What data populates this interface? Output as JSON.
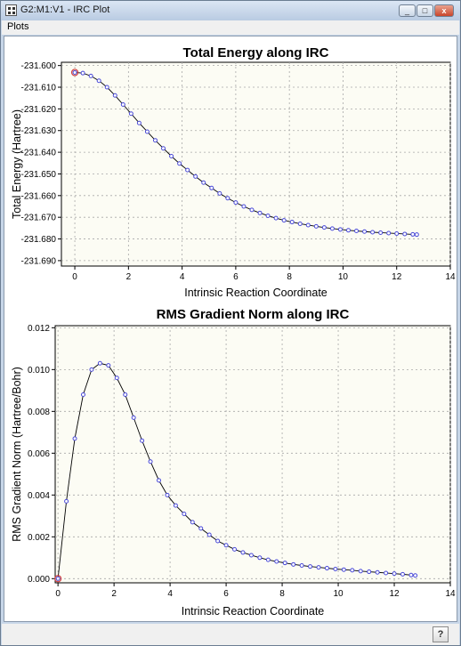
{
  "window": {
    "title": "G2:M1:V1 - IRC Plot",
    "minimize_glyph": "_",
    "maximize_glyph": "□",
    "close_glyph": "x"
  },
  "menu": {
    "plots": "Plots"
  },
  "statusbar": {
    "help_icon": "help-icon",
    "help_glyph": "?"
  },
  "colors": {
    "plot_bg": "#fcfcf4",
    "line": "#000000",
    "marker": "#4a4ad8",
    "endpoint_marker": "#d04040"
  },
  "chart_data": [
    {
      "type": "line",
      "title": "Total Energy along IRC",
      "xlabel": "Intrinsic Reaction Coordinate",
      "ylabel": "Total Energy (Hartree)",
      "xlim": [
        -0.5,
        14
      ],
      "ylim": [
        -231.6925,
        -231.5985
      ],
      "xticks": [
        0,
        2,
        4,
        6,
        8,
        10,
        12,
        14
      ],
      "yticks": [
        -231.6,
        -231.61,
        -231.62,
        -231.63,
        -231.64,
        -231.65,
        -231.66,
        -231.67,
        -231.68,
        -231.69
      ],
      "ytick_labels": [
        "-231.600",
        "-231.610",
        "-231.620",
        "-231.630",
        "-231.640",
        "-231.650",
        "-231.660",
        "-231.670",
        "-231.680",
        "-231.690"
      ],
      "xtick_labels": [
        "0",
        "2",
        "4",
        "6",
        "8",
        "10",
        "12",
        "14"
      ],
      "grid": true,
      "x": [
        0,
        0.3,
        0.6,
        0.9,
        1.2,
        1.5,
        1.8,
        2.1,
        2.4,
        2.7,
        3.0,
        3.3,
        3.6,
        3.9,
        4.2,
        4.5,
        4.8,
        5.1,
        5.4,
        5.7,
        6.0,
        6.3,
        6.6,
        6.9,
        7.2,
        7.5,
        7.8,
        8.1,
        8.4,
        8.7,
        9.0,
        9.3,
        9.6,
        9.9,
        10.2,
        10.5,
        10.8,
        11.1,
        11.4,
        11.7,
        12.0,
        12.3,
        12.6,
        12.75
      ],
      "y": [
        -231.6032,
        -231.6035,
        -231.6048,
        -231.607,
        -231.61,
        -231.6138,
        -231.618,
        -231.6222,
        -231.6265,
        -231.6305,
        -231.6345,
        -231.6382,
        -231.6418,
        -231.6452,
        -231.6482,
        -231.6512,
        -231.654,
        -231.6565,
        -231.659,
        -231.6612,
        -231.6632,
        -231.665,
        -231.6666,
        -231.668,
        -231.6693,
        -231.6704,
        -231.6714,
        -231.6722,
        -231.673,
        -231.6736,
        -231.6742,
        -231.6747,
        -231.6752,
        -231.6756,
        -231.676,
        -231.6763,
        -231.6766,
        -231.6769,
        -231.6771,
        -231.6773,
        -231.6775,
        -231.6777,
        -231.6779,
        -231.678
      ]
    },
    {
      "type": "line",
      "title": "RMS Gradient Norm along IRC",
      "xlabel": "Intrinsic Reaction Coordinate",
      "ylabel": "RMS Gradient Norm (Hartree/Bohr)",
      "xlim": [
        -0.1,
        14
      ],
      "ylim": [
        -0.0002,
        0.0121
      ],
      "xticks": [
        0,
        2,
        4,
        6,
        8,
        10,
        12,
        14
      ],
      "yticks": [
        0,
        0.002,
        0.004,
        0.006,
        0.008,
        0.01,
        0.012
      ],
      "ytick_labels": [
        "0.000",
        "0.002",
        "0.004",
        "0.006",
        "0.008",
        "0.010",
        "0.012"
      ],
      "xtick_labels": [
        "0",
        "2",
        "4",
        "6",
        "8",
        "10",
        "12",
        "14"
      ],
      "grid": true,
      "x": [
        0,
        0.3,
        0.6,
        0.9,
        1.2,
        1.5,
        1.8,
        2.1,
        2.4,
        2.7,
        3.0,
        3.3,
        3.6,
        3.9,
        4.2,
        4.5,
        4.8,
        5.1,
        5.4,
        5.7,
        6.0,
        6.3,
        6.6,
        6.9,
        7.2,
        7.5,
        7.8,
        8.1,
        8.4,
        8.7,
        9.0,
        9.3,
        9.6,
        9.9,
        10.2,
        10.5,
        10.8,
        11.1,
        11.4,
        11.7,
        12.0,
        12.3,
        12.6,
        12.75
      ],
      "y": [
        0.0,
        0.0037,
        0.0067,
        0.0088,
        0.01,
        0.0103,
        0.0102,
        0.0096,
        0.0088,
        0.0077,
        0.0066,
        0.0056,
        0.0047,
        0.004,
        0.0035,
        0.0031,
        0.0027,
        0.0024,
        0.0021,
        0.0018,
        0.0016,
        0.0014,
        0.00125,
        0.00112,
        0.001,
        0.0009,
        0.00082,
        0.00075,
        0.00068,
        0.00063,
        0.00058,
        0.00054,
        0.0005,
        0.00046,
        0.00043,
        0.0004,
        0.00036,
        0.00033,
        0.0003,
        0.00027,
        0.00024,
        0.00021,
        0.00017,
        0.00015
      ]
    }
  ]
}
